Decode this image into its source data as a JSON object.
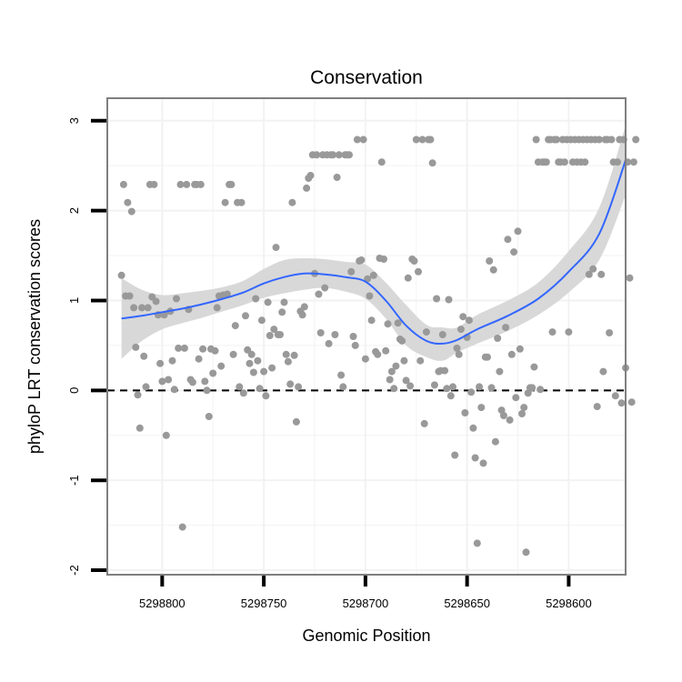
{
  "chart_data": {
    "type": "scatter",
    "title": "Conservation",
    "xlabel": "Genomic Position",
    "ylabel": "phyloP LRT conservation scores",
    "x_reversed": true,
    "xlim": [
      5298827,
      5298572
    ],
    "ylim": [
      -2.05,
      3.25
    ],
    "xticks": [
      5298800,
      5298750,
      5298700,
      5298650,
      5298600
    ],
    "yticks": [
      -2,
      -1,
      0,
      1,
      2,
      3
    ],
    "xtick_labels": [
      "5298800",
      "5298750",
      "5298700",
      "5298650",
      "5298600"
    ],
    "ytick_labels": [
      "-2",
      "-1",
      "0",
      "1",
      "2",
      "3"
    ],
    "grid": true,
    "reference_line": {
      "y": 0,
      "style": "dashed"
    },
    "colors": {
      "points": "#999999",
      "smooth": "#3366ff",
      "band": "#d6d6d6",
      "panel_border": "#7f7f7f",
      "grid": "#f2f2f2"
    },
    "series": [
      {
        "type": "scatter",
        "points": [
          [
            5298820,
            1.28
          ],
          [
            5298819,
            2.29
          ],
          [
            5298818,
            1.05
          ],
          [
            5298817,
            2.09
          ],
          [
            5298816,
            1.05
          ],
          [
            5298815,
            1.99
          ],
          [
            5298814,
            0.92
          ],
          [
            5298813,
            0.48
          ],
          [
            5298812,
            -0.05
          ],
          [
            5298811,
            -0.42
          ],
          [
            5298810,
            0.92
          ],
          [
            5298809,
            0.38
          ],
          [
            5298808,
            0.04
          ],
          [
            5298807,
            0.92
          ],
          [
            5298806,
            2.29
          ],
          [
            5298805,
            1.04
          ],
          [
            5298804,
            2.29
          ],
          [
            5298803,
            0.99
          ],
          [
            5298802,
            0.84
          ],
          [
            5298801,
            0.3
          ],
          [
            5298800,
            0.1
          ],
          [
            5298799,
            0.84
          ],
          [
            5298798,
            -0.5
          ],
          [
            5298797,
            0.12
          ],
          [
            5298796,
            0.88
          ],
          [
            5298795,
            0.33
          ],
          [
            5298794,
            0.01
          ],
          [
            5298793,
            1.02
          ],
          [
            5298792,
            0.47
          ],
          [
            5298791,
            2.29
          ],
          [
            5298790,
            -1.52
          ],
          [
            5298789,
            0.47
          ],
          [
            5298788,
            2.29
          ],
          [
            5298787,
            0.9
          ],
          [
            5298786,
            0.12
          ],
          [
            5298785,
            0.09
          ],
          [
            5298784,
            2.29
          ],
          [
            5298783,
            2.29
          ],
          [
            5298782,
            0.35
          ],
          [
            5298781,
            2.29
          ],
          [
            5298780,
            0.46
          ],
          [
            5298779,
            0.1
          ],
          [
            5298778,
            0.0
          ],
          [
            5298777,
            -0.29
          ],
          [
            5298776,
            0.46
          ],
          [
            5298775,
            0.19
          ],
          [
            5298774,
            0.44
          ],
          [
            5298773,
            0.92
          ],
          [
            5298772,
            1.05
          ],
          [
            5298771,
            0.27
          ],
          [
            5298770,
            1.06
          ],
          [
            5298769,
            2.09
          ],
          [
            5298768,
            1.07
          ],
          [
            5298767,
            2.29
          ],
          [
            5298766,
            2.29
          ],
          [
            5298765,
            0.4
          ],
          [
            5298764,
            0.72
          ],
          [
            5298763,
            2.09
          ],
          [
            5298762,
            0.04
          ],
          [
            5298761,
            2.09
          ],
          [
            5298760,
            -0.03
          ],
          [
            5298759,
            0.83
          ],
          [
            5298758,
            0.45
          ],
          [
            5298757,
            0.3
          ],
          [
            5298756,
            0.4
          ],
          [
            5298755,
            0.2
          ],
          [
            5298754,
            1.02
          ],
          [
            5298753,
            0.33
          ],
          [
            5298752,
            0.02
          ],
          [
            5298751,
            0.78
          ],
          [
            5298750,
            0.21
          ],
          [
            5298749,
            -0.06
          ],
          [
            5298748,
            0.98
          ],
          [
            5298747,
            0.61
          ],
          [
            5298746,
            0.25
          ],
          [
            5298745,
            0.68
          ],
          [
            5298744,
            1.59
          ],
          [
            5298743,
            0.62
          ],
          [
            5298742,
            0.62
          ],
          [
            5298741,
            0.87
          ],
          [
            5298740,
            0.98
          ],
          [
            5298739,
            0.4
          ],
          [
            5298738,
            0.32
          ],
          [
            5298737,
            0.07
          ],
          [
            5298736,
            2.09
          ],
          [
            5298735,
            0.39
          ],
          [
            5298734,
            -0.35
          ],
          [
            5298733,
            0.04
          ],
          [
            5298732,
            0.88
          ],
          [
            5298731,
            0.84
          ],
          [
            5298730,
            0.93
          ],
          [
            5298729,
            2.25
          ],
          [
            5298728,
            2.36
          ],
          [
            5298727,
            2.39
          ],
          [
            5298726,
            2.62
          ],
          [
            5298725,
            1.3
          ],
          [
            5298724,
            2.62
          ],
          [
            5298723,
            1.07
          ],
          [
            5298722,
            0.64
          ],
          [
            5298721,
            2.62
          ],
          [
            5298720,
            1.14
          ],
          [
            5298719,
            2.62
          ],
          [
            5298718,
            0.52
          ],
          [
            5298717,
            2.62
          ],
          [
            5298716,
            2.62
          ],
          [
            5298715,
            0.62
          ],
          [
            5298714,
            2.37
          ],
          [
            5298713,
            2.62
          ],
          [
            5298712,
            0.17
          ],
          [
            5298711,
            0.04
          ],
          [
            5298710,
            2.62
          ],
          [
            5298709,
            2.62
          ],
          [
            5298708,
            2.62
          ],
          [
            5298707,
            1.32
          ],
          [
            5298706,
            0.6
          ],
          [
            5298705,
            0.5
          ],
          [
            5298704,
            2.79
          ],
          [
            5298703,
            1.44
          ],
          [
            5298702,
            1.45
          ],
          [
            5298701,
            2.79
          ],
          [
            5298700,
            0.35
          ],
          [
            5298699,
            1.24
          ],
          [
            5298698,
            1.05
          ],
          [
            5298697,
            0.78
          ],
          [
            5298696,
            1.28
          ],
          [
            5298695,
            0.43
          ],
          [
            5298694,
            0.4
          ],
          [
            5298693,
            1.47
          ],
          [
            5298692,
            2.54
          ],
          [
            5298691,
            1.46
          ],
          [
            5298690,
            0.44
          ],
          [
            5298689,
            0.74
          ],
          [
            5298688,
            0.12
          ],
          [
            5298687,
            0.21
          ],
          [
            5298686,
            0.02
          ],
          [
            5298685,
            0.27
          ],
          [
            5298684,
            0.75
          ],
          [
            5298683,
            0.57
          ],
          [
            5298682,
            0.55
          ],
          [
            5298681,
            0.33
          ],
          [
            5298680,
            0.11
          ],
          [
            5298679,
            1.25
          ],
          [
            5298678,
            0.05
          ],
          [
            5298677,
            1.46
          ],
          [
            5298676,
            1.44
          ],
          [
            5298675,
            2.79
          ],
          [
            5298674,
            1.32
          ],
          [
            5298673,
            0.33
          ],
          [
            5298672,
            2.79
          ],
          [
            5298671,
            -0.37
          ],
          [
            5298670,
            0.65
          ],
          [
            5298669,
            2.79
          ],
          [
            5298668,
            2.79
          ],
          [
            5298667,
            2.53
          ],
          [
            5298666,
            0.06
          ],
          [
            5298665,
            1.02
          ],
          [
            5298664,
            0.21
          ],
          [
            5298663,
            0.22
          ],
          [
            5298662,
            0.62
          ],
          [
            5298661,
            0.22
          ],
          [
            5298660,
            0.02
          ],
          [
            5298659,
            1.01
          ],
          [
            5298658,
            -0.06
          ],
          [
            5298657,
            0.04
          ],
          [
            5298656,
            -0.72
          ],
          [
            5298655,
            0.47
          ],
          [
            5298654,
            0.4
          ],
          [
            5298653,
            0.68
          ],
          [
            5298652,
            0.82
          ],
          [
            5298651,
            -0.25
          ],
          [
            5298650,
            0.59
          ],
          [
            5298649,
            0.78
          ],
          [
            5298648,
            -0.02
          ],
          [
            5298647,
            -0.42
          ],
          [
            5298646,
            -0.75
          ],
          [
            5298645,
            -1.7
          ],
          [
            5298644,
            0.04
          ],
          [
            5298643,
            -0.19
          ],
          [
            5298642,
            -0.81
          ],
          [
            5298641,
            0.37
          ],
          [
            5298640,
            0.37
          ],
          [
            5298639,
            1.44
          ],
          [
            5298638,
            0.03
          ],
          [
            5298637,
            1.34
          ],
          [
            5298636,
            -0.57
          ],
          [
            5298635,
            0.58
          ],
          [
            5298634,
            0.21
          ],
          [
            5298633,
            -0.22
          ],
          [
            5298632,
            -0.28
          ],
          [
            5298631,
            0.7
          ],
          [
            5298630,
            1.68
          ],
          [
            5298629,
            -0.33
          ],
          [
            5298628,
            0.4
          ],
          [
            5298627,
            1.54
          ],
          [
            5298626,
            -0.08
          ],
          [
            5298625,
            1.77
          ],
          [
            5298624,
            0.46
          ],
          [
            5298623,
            -0.26
          ],
          [
            5298622,
            -0.19
          ],
          [
            5298621,
            -1.8
          ],
          [
            5298620,
            -0.03
          ],
          [
            5298619,
            0.03
          ],
          [
            5298618,
            0.03
          ],
          [
            5298617,
            0.26
          ],
          [
            5298616,
            2.79
          ],
          [
            5298615,
            2.54
          ],
          [
            5298614,
            0.01
          ],
          [
            5298613,
            2.54
          ],
          [
            5298612,
            2.54
          ],
          [
            5298611,
            2.54
          ],
          [
            5298610,
            2.79
          ],
          [
            5298609,
            2.79
          ],
          [
            5298608,
            0.65
          ],
          [
            5298607,
            2.79
          ],
          [
            5298606,
            2.79
          ],
          [
            5298605,
            2.54
          ],
          [
            5298604,
            2.54
          ],
          [
            5298603,
            2.79
          ],
          [
            5298602,
            2.54
          ],
          [
            5298601,
            2.79
          ],
          [
            5298600,
            0.65
          ],
          [
            5298599,
            2.79
          ],
          [
            5298598,
            2.54
          ],
          [
            5298597,
            2.79
          ],
          [
            5298596,
            2.54
          ],
          [
            5298595,
            2.79
          ],
          [
            5298594,
            2.54
          ],
          [
            5298593,
            2.79
          ],
          [
            5298592,
            2.54
          ],
          [
            5298591,
            2.79
          ],
          [
            5298590,
            1.29
          ],
          [
            5298589,
            2.79
          ],
          [
            5298588,
            1.35
          ],
          [
            5298587,
            2.79
          ],
          [
            5298586,
            -0.18
          ],
          [
            5298585,
            2.79
          ],
          [
            5298584,
            1.29
          ],
          [
            5298583,
            0.21
          ],
          [
            5298582,
            2.79
          ],
          [
            5298581,
            2.79
          ],
          [
            5298580,
            0.64
          ],
          [
            5298579,
            2.79
          ],
          [
            5298578,
            2.54
          ],
          [
            5298577,
            -0.06
          ],
          [
            5298576,
            2.54
          ],
          [
            5298575,
            2.79
          ],
          [
            5298574,
            -0.14
          ],
          [
            5298573,
            2.79
          ],
          [
            5298572,
            0.25
          ],
          [
            5298571,
            2.54
          ],
          [
            5298570,
            1.25
          ],
          [
            5298569,
            -0.13
          ],
          [
            5298568,
            2.54
          ],
          [
            5298567,
            2.79
          ]
        ]
      },
      {
        "type": "line",
        "band": true,
        "points": [
          [
            5298820,
            0.8,
            1.25,
            0.35
          ],
          [
            5298810,
            0.83,
            1.12,
            0.55
          ],
          [
            5298800,
            0.87,
            1.06,
            0.68
          ],
          [
            5298790,
            0.91,
            1.08,
            0.75
          ],
          [
            5298780,
            0.96,
            1.11,
            0.81
          ],
          [
            5298770,
            1.02,
            1.15,
            0.88
          ],
          [
            5298760,
            1.09,
            1.22,
            0.95
          ],
          [
            5298750,
            1.19,
            1.35,
            1.03
          ],
          [
            5298740,
            1.26,
            1.45,
            1.08
          ],
          [
            5298730,
            1.3,
            1.47,
            1.12
          ],
          [
            5298720,
            1.29,
            1.46,
            1.14
          ],
          [
            5298710,
            1.26,
            1.43,
            1.1
          ],
          [
            5298700,
            1.21,
            1.4,
            1.02
          ],
          [
            5298690,
            1.0,
            1.2,
            0.8
          ],
          [
            5298680,
            0.72,
            0.95,
            0.5
          ],
          [
            5298670,
            0.55,
            0.73,
            0.37
          ],
          [
            5298662,
            0.52,
            0.7,
            0.33
          ],
          [
            5298655,
            0.56,
            0.7,
            0.42
          ],
          [
            5298645,
            0.68,
            0.84,
            0.52
          ],
          [
            5298630,
            0.83,
            1.0,
            0.66
          ],
          [
            5298615,
            1.02,
            1.2,
            0.84
          ],
          [
            5298600,
            1.32,
            1.55,
            1.09
          ],
          [
            5298585,
            1.74,
            2.03,
            1.45
          ],
          [
            5298572,
            2.56,
            2.95,
            2.17
          ]
        ]
      }
    ]
  }
}
